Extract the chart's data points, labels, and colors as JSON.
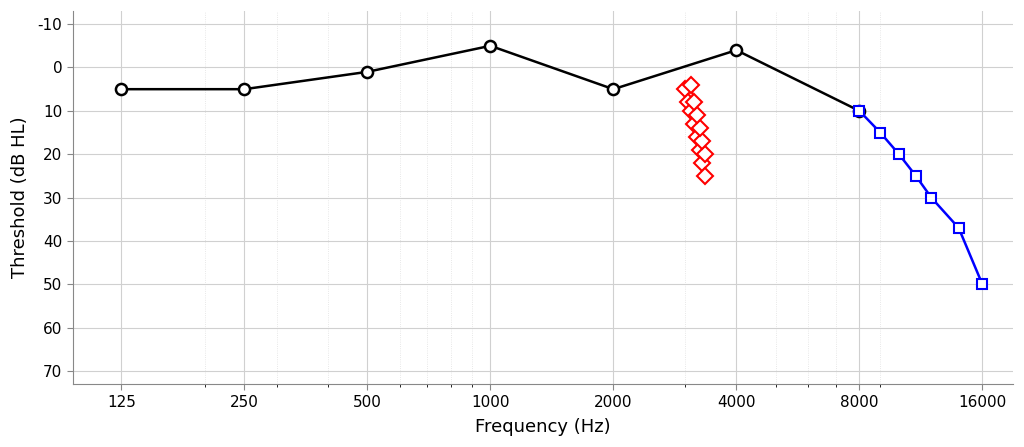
{
  "black_x": [
    125,
    250,
    500,
    1000,
    2000,
    4000,
    8000
  ],
  "black_y": [
    5,
    5,
    1,
    -5,
    5,
    -4,
    10
  ],
  "red_x": [
    3000,
    3050,
    3100,
    3150,
    3200,
    3250,
    3300,
    3350,
    3350,
    3300,
    3250,
    3200,
    3150,
    3100
  ],
  "red_y": [
    5,
    8,
    10,
    13,
    16,
    19,
    22,
    25,
    20,
    17,
    14,
    11,
    8,
    4
  ],
  "blue_x": [
    8000,
    9000,
    10000,
    11000,
    12000,
    14000,
    16000
  ],
  "blue_y": [
    10,
    15,
    20,
    25,
    30,
    37,
    50
  ],
  "freq_ticks": [
    125,
    250,
    500,
    1000,
    2000,
    4000,
    8000,
    16000
  ],
  "freq_tick_labels": [
    "125",
    "250",
    "500",
    "1000",
    "2000",
    "4000",
    "8000",
    "16000"
  ],
  "yticks": [
    -10,
    0,
    10,
    20,
    30,
    40,
    50,
    60,
    70
  ],
  "ylim_top": -13,
  "ylim_bottom": 73,
  "xlim_min": 95,
  "xlim_max": 19000,
  "ylabel": "Threshold (dB HL)",
  "xlabel": "Frequency (Hz)",
  "black_color": "#000000",
  "red_color": "#ff0000",
  "blue_color": "#0000ff",
  "grid_major_color": "#d0d0d0",
  "grid_minor_color": "#e0e0e0",
  "bg_color": "#ffffff",
  "axis_fontsize": 13,
  "tick_fontsize": 11,
  "linewidth": 1.8,
  "marker_size_circle": 8,
  "marker_size_diamond": 8,
  "marker_size_square": 7
}
